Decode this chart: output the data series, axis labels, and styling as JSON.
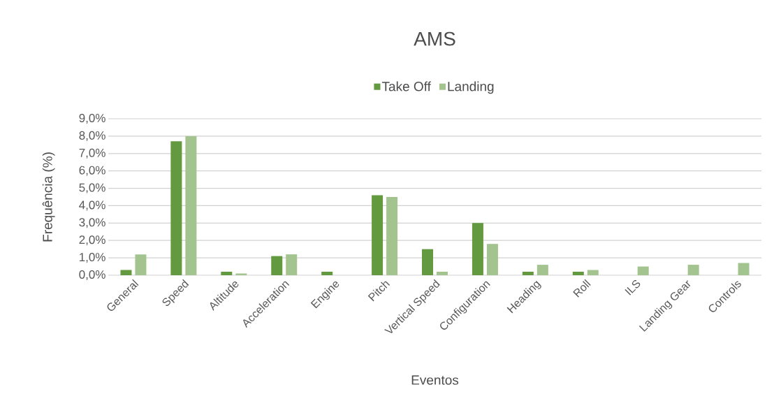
{
  "chart_data": {
    "type": "bar",
    "title": "AMS",
    "xlabel": "Eventos",
    "ylabel": "Frequência (%)",
    "categories": [
      "General",
      "Speed",
      "Altitude",
      "Acceleration",
      "Engine",
      "Pitch",
      "Vertical Speed",
      "Configuration",
      "Heading",
      "Roll",
      "ILS",
      "Landing Gear",
      "Controls"
    ],
    "series": [
      {
        "name": "Take Off",
        "color": "#639a3f",
        "values": [
          0.3,
          7.7,
          0.2,
          1.1,
          0.2,
          4.6,
          1.5,
          3.0,
          0.2,
          0.2,
          null,
          null,
          null
        ]
      },
      {
        "name": "Landing",
        "color": "#a3c48f",
        "values": [
          1.2,
          8.0,
          0.1,
          1.2,
          null,
          4.5,
          0.2,
          1.8,
          0.6,
          0.3,
          0.5,
          0.6,
          0.7
        ]
      }
    ],
    "ylim": [
      0,
      9
    ],
    "yticks": [
      {
        "value": 0,
        "label": "0,0%"
      },
      {
        "value": 1,
        "label": "1,0%"
      },
      {
        "value": 2,
        "label": "2,0%"
      },
      {
        "value": 3,
        "label": "3,0%"
      },
      {
        "value": 4,
        "label": "4,0%"
      },
      {
        "value": 5,
        "label": "5,0%"
      },
      {
        "value": 6,
        "label": "6,0%"
      },
      {
        "value": 7,
        "label": "7,0%"
      },
      {
        "value": 8,
        "label": "8,0%"
      },
      {
        "value": 9,
        "label": "9,0%"
      }
    ],
    "grid": "y",
    "legend": "top"
  }
}
